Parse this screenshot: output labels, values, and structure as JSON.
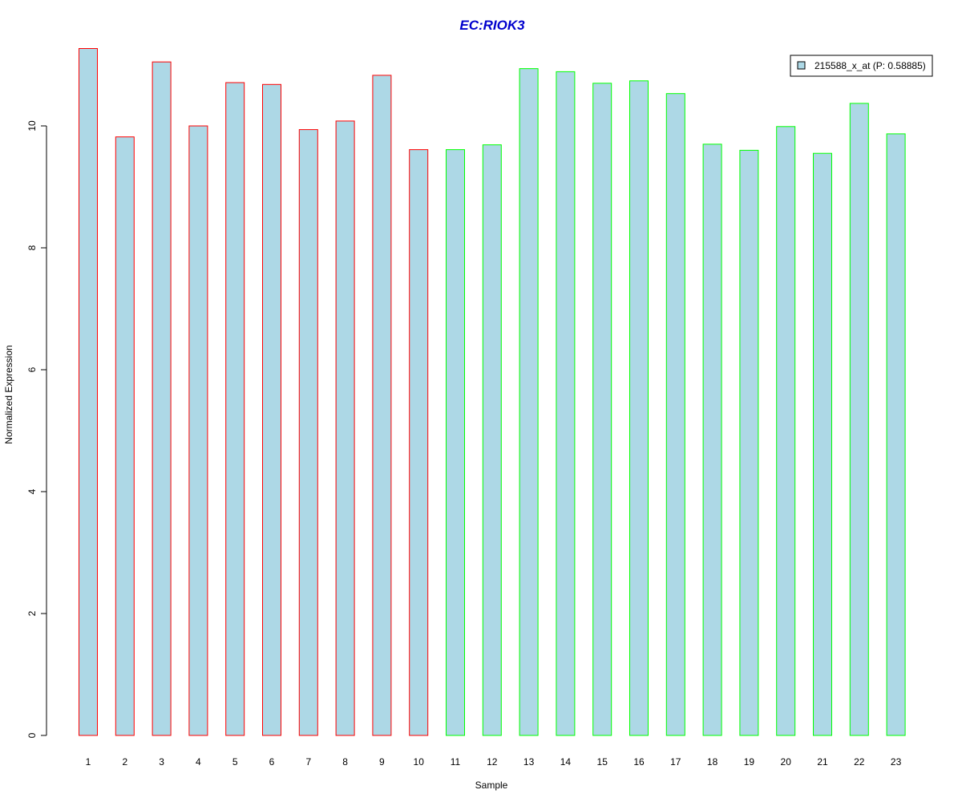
{
  "chart_data": {
    "type": "bar",
    "title": "EC:RIOK3",
    "xlabel": "Sample",
    "ylabel": "Normalized Expression",
    "categories": [
      "1",
      "2",
      "3",
      "4",
      "5",
      "6",
      "7",
      "8",
      "9",
      "10",
      "11",
      "12",
      "13",
      "14",
      "15",
      "16",
      "17",
      "18",
      "19",
      "20",
      "21",
      "22",
      "23"
    ],
    "values": [
      11.27,
      9.82,
      11.05,
      10.0,
      10.71,
      10.68,
      9.94,
      10.08,
      10.83,
      9.61,
      9.61,
      9.69,
      10.94,
      10.89,
      10.7,
      10.74,
      10.53,
      9.7,
      9.6,
      9.99,
      9.55,
      10.37,
      9.87
    ],
    "groups": [
      "red",
      "red",
      "red",
      "red",
      "red",
      "red",
      "red",
      "red",
      "red",
      "red",
      "green",
      "green",
      "green",
      "green",
      "green",
      "green",
      "green",
      "green",
      "green",
      "green",
      "green",
      "green",
      "green"
    ],
    "ylim": [
      0,
      11.3
    ],
    "yticks": [
      0,
      2,
      4,
      6,
      8,
      10
    ],
    "grid": false,
    "legend": {
      "position": "top-right",
      "entries": [
        {
          "label": "215588_x_at (P: 0.58885)",
          "color": "#add8e6"
        }
      ]
    },
    "colors": {
      "bar_fill": "#add8e6",
      "group_red": "#ff0000",
      "group_green": "#00ff00",
      "title": "#0000cd"
    }
  }
}
